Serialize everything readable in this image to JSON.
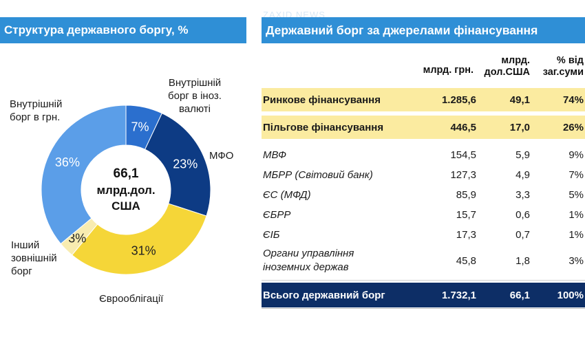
{
  "watermark": "ZAXID NEWS",
  "left": {
    "title": "Структура державного боргу, %"
  },
  "chart_data": {
    "type": "pie",
    "subtype": "donut",
    "title": "Структура державного боргу, %",
    "unit": "%",
    "center_text": [
      "66,1",
      "млрд.дол.",
      "США"
    ],
    "slices": [
      {
        "name": "Внутрішній борг в іноз. валюті",
        "label_lines": [
          "Внутрішній",
          "борг в іноз.",
          "валюті"
        ],
        "value": 7,
        "value_label": "7%",
        "color": "#2b6fce"
      },
      {
        "name": "МФО",
        "label_lines": [
          "МФО"
        ],
        "value": 23,
        "value_label": "23%",
        "color": "#0d3b84"
      },
      {
        "name": "Єврооблігації",
        "label_lines": [
          "Єврооблігації"
        ],
        "value": 31,
        "value_label": "31%",
        "color": "#f5d638"
      },
      {
        "name": "Інший зовнішній борг",
        "label_lines": [
          "Інший",
          "зовнішній",
          "борг"
        ],
        "value": 3,
        "value_label": "3%",
        "color": "#f8ecb0"
      },
      {
        "name": "Внутрішній борг в грн.",
        "label_lines": [
          "Внутрішній",
          "борг в грн."
        ],
        "value": 36,
        "value_label": "36%",
        "color": "#5b9ee8"
      }
    ]
  },
  "right": {
    "title": "Державний борг за джерелами фінансування",
    "columns": [
      {
        "lines": [
          "млрд. грн."
        ]
      },
      {
        "lines": [
          "млрд.",
          "дол.США"
        ]
      },
      {
        "lines": [
          "% від",
          "заг.суми"
        ]
      }
    ],
    "highlight_rows": [
      {
        "label": "Ринкове фінансування",
        "uah": "1.285,6",
        "usd": "49,1",
        "pct": "74%"
      },
      {
        "label": "Пільгове фінансування",
        "uah": "446,5",
        "usd": "17,0",
        "pct": "26%"
      }
    ],
    "rows": [
      {
        "label": "МВФ",
        "uah": "154,5",
        "usd": "5,9",
        "pct": "9%"
      },
      {
        "label": "МБРР (Світовий банк)",
        "uah": "127,3",
        "usd": "4,9",
        "pct": "7%"
      },
      {
        "label": "ЄС (МФД)",
        "uah": "85,9",
        "usd": "3,3",
        "pct": "5%"
      },
      {
        "label": "ЄБРР",
        "uah": "15,7",
        "usd": "0,6",
        "pct": "1%"
      },
      {
        "label": "ЄІБ",
        "uah": "17,3",
        "usd": "0,7",
        "pct": "1%"
      },
      {
        "label_lines": [
          "Органи управління",
          "іноземних держав"
        ],
        "uah": "45,8",
        "usd": "1,8",
        "pct": "3%"
      }
    ],
    "total": {
      "label": "Всього державний борг",
      "uah": "1.732,1",
      "usd": "66,1",
      "pct": "100%"
    }
  }
}
